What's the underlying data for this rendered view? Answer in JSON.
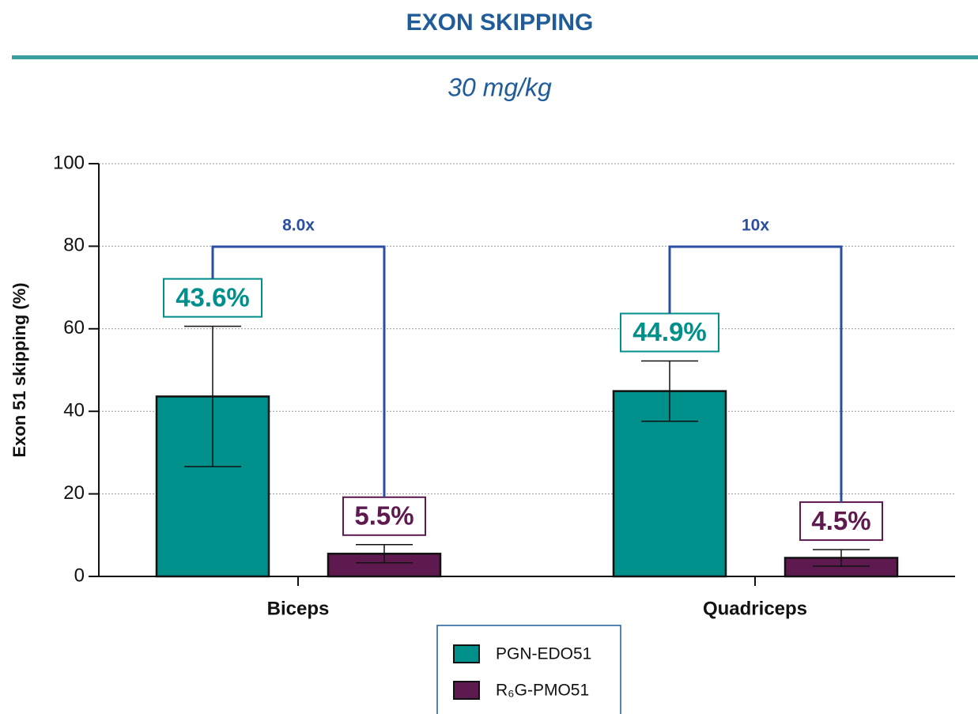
{
  "chart_data": {
    "type": "bar",
    "title": "EXON SKIPPING",
    "subtitle": "30 mg/kg",
    "y_label": "Exon 51 skipping (%)",
    "categories": [
      "Biceps",
      "Quadriceps"
    ],
    "series": [
      {
        "name": "PGN-EDO51",
        "color": "#00908c",
        "values": [
          43.6,
          44.9
        ],
        "errors": [
          17,
          7.3
        ],
        "value_labels": [
          "43.6%",
          "44.9%"
        ]
      },
      {
        "name": "R₆G-PMO51",
        "color": "#5e1a4f",
        "values": [
          5.5,
          4.5
        ],
        "errors": [
          2.2,
          2
        ],
        "value_labels": [
          "5.5%",
          "4.5%"
        ]
      }
    ],
    "annotations": [
      "8.0x",
      "10x"
    ],
    "ylim": [
      0,
      100
    ],
    "yticks": [
      0,
      20,
      40,
      60,
      80,
      100
    ],
    "grid": true,
    "legend": "bottom"
  }
}
